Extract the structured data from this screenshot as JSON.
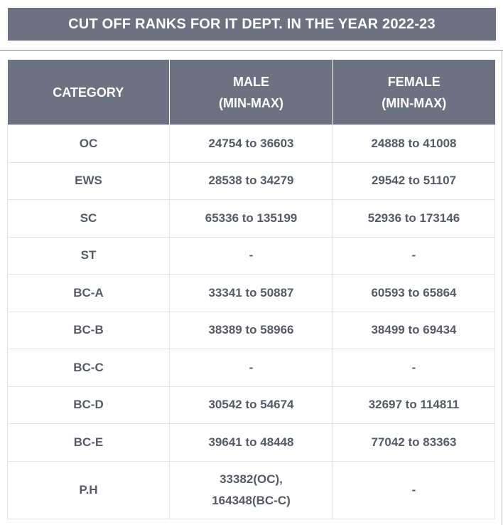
{
  "title": "CUT OFF RANKS FOR IT DEPT. IN THE YEAR 2022-23",
  "table": {
    "headers": {
      "category": "CATEGORY",
      "male_line1": "MALE",
      "male_line2": "(MIN-MAX)",
      "female_line1": "FEMALE",
      "female_line2": "(MIN-MAX)"
    },
    "rows": [
      {
        "category": "OC",
        "male": "24754 to 36603",
        "female": "24888 to 41008"
      },
      {
        "category": "EWS",
        "male": "28538 to 34279",
        "female": "29542 to 51107"
      },
      {
        "category": "SC",
        "male": "65336 to 135199",
        "female": "52936 to 173146"
      },
      {
        "category": "ST",
        "male": "-",
        "female": "-"
      },
      {
        "category": "BC-A",
        "male": "33341 to 50887",
        "female": "60593 to 65864"
      },
      {
        "category": "BC-B",
        "male": "38389 to 58966",
        "female": "38499 to 69434"
      },
      {
        "category": "BC-C",
        "male": "-",
        "female": "-"
      },
      {
        "category": "BC-D",
        "male": "30542 to 54674",
        "female": "32697 to 114811"
      },
      {
        "category": "BC-E",
        "male": "39641 to 48448",
        "female": "77042 to 83363"
      },
      {
        "category": "P.H",
        "male_line1": "33382(OC),",
        "male_line2": "164348(BC-C)",
        "female": "-"
      }
    ]
  }
}
